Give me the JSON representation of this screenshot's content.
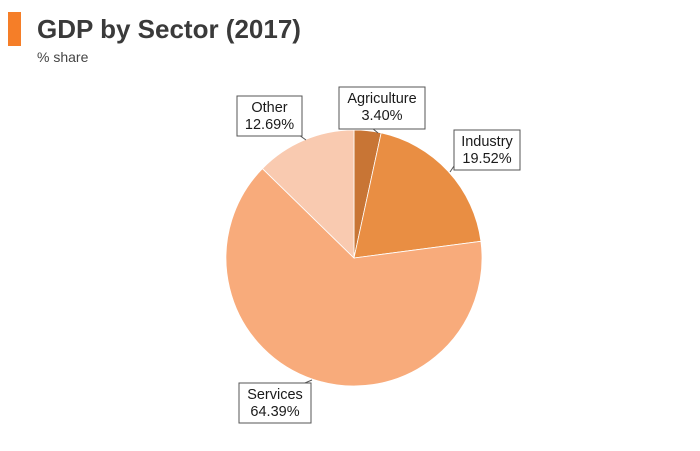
{
  "header": {
    "title": "GDP by Sector (2017)",
    "subtitle": "% share"
  },
  "colors": {
    "accent": "#f57e28"
  },
  "chart_data": {
    "type": "pie",
    "title": "GDP by Sector (2017)",
    "subtitle": "% share",
    "start_angle_deg": 0,
    "direction": "clockwise",
    "slices": [
      {
        "label": "Agriculture",
        "value": 3.4,
        "display": "3.40%",
        "color": "#c87535"
      },
      {
        "label": "Industry",
        "value": 19.52,
        "display": "19.52%",
        "color": "#e98e43"
      },
      {
        "label": "Services",
        "value": 64.39,
        "display": "64.39%",
        "color": "#f8ab7b"
      },
      {
        "label": "Other",
        "value": 12.69,
        "display": "12.69%",
        "color": "#f9cab0"
      }
    ]
  }
}
